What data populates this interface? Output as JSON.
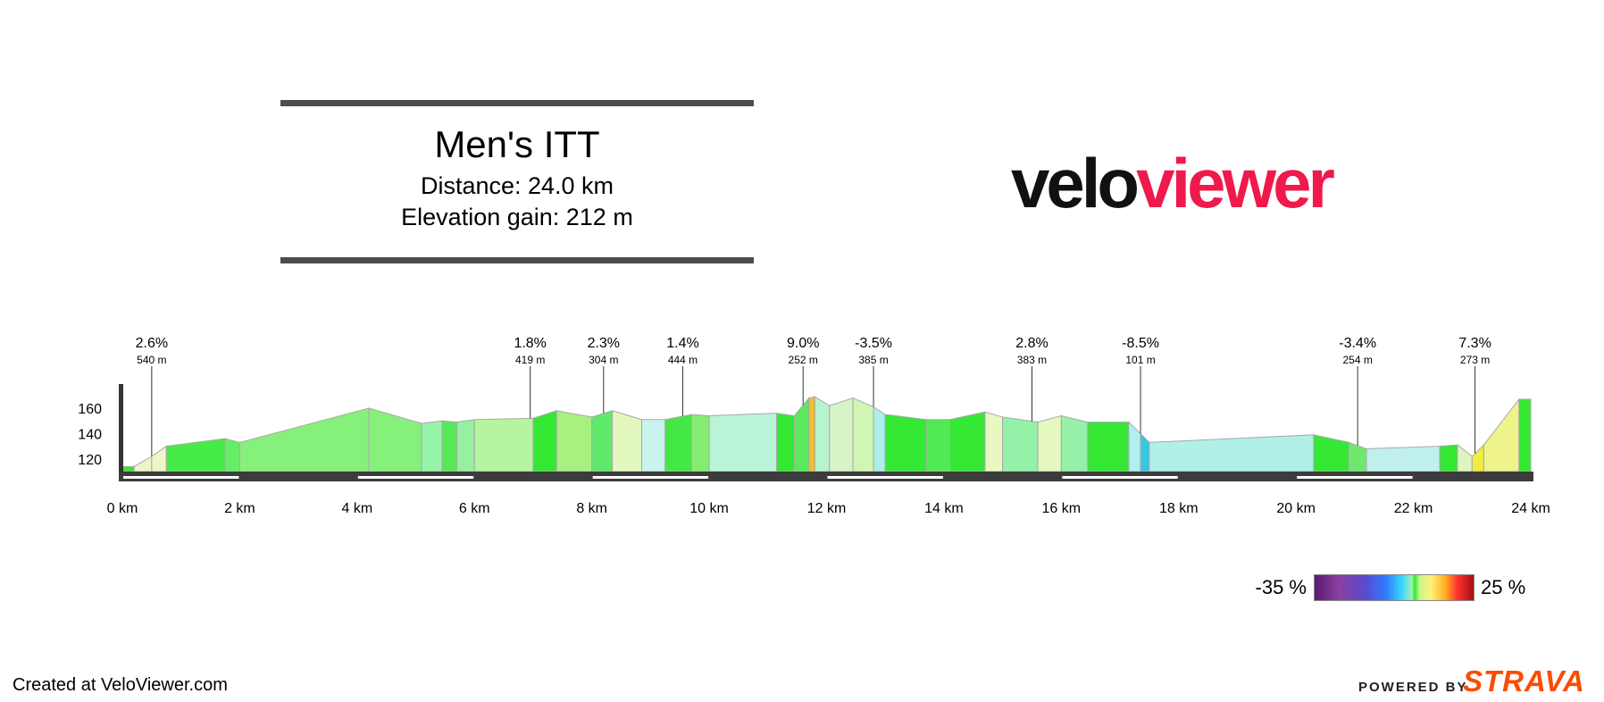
{
  "header": {
    "title": "Men's ITT",
    "distance": "Distance: 24.0 km",
    "elevation": "Elevation gain: 212 m"
  },
  "logo": {
    "part1": "velo",
    "part2": "viewer",
    "color1": "#111111",
    "color2": "#f0194b"
  },
  "legend": {
    "min": "-35 %",
    "max": "25 %"
  },
  "footer": {
    "credit": "Created at VeloViewer.com",
    "powered": "POWERED BY",
    "strava": "STRAVA"
  },
  "chart_data": {
    "type": "area",
    "xlabel": "",
    "ylabel": "",
    "xlim": [
      0,
      24
    ],
    "ylim": [
      110,
      170
    ],
    "x_ticks": [
      0,
      2,
      4,
      6,
      8,
      10,
      12,
      14,
      16,
      18,
      20,
      22,
      24
    ],
    "x_tick_labels": [
      "0 km",
      "2 km",
      "4 km",
      "6 km",
      "8 km",
      "10 km",
      "12 km",
      "14 km",
      "16 km",
      "18 km",
      "20 km",
      "22 km",
      "24 km"
    ],
    "y_ticks": [
      120,
      140,
      160
    ],
    "y_tick_labels": [
      "120",
      "140",
      "160"
    ],
    "elevation_profile": {
      "x": [
        0.0,
        0.2,
        0.5,
        0.75,
        1.75,
        2.0,
        4.2,
        5.1,
        5.45,
        5.7,
        6.0,
        7.0,
        7.4,
        8.0,
        8.35,
        8.85,
        9.25,
        9.7,
        10.0,
        11.15,
        11.45,
        11.7,
        11.8,
        12.05,
        12.45,
        12.8,
        13.0,
        13.7,
        14.1,
        14.7,
        15.0,
        15.6,
        16.0,
        16.45,
        17.15,
        17.35,
        17.5,
        20.3,
        20.9,
        21.2,
        22.45,
        22.75,
        23.0,
        23.2,
        23.8,
        24.0
      ],
      "y": [
        114,
        114,
        122,
        130,
        136,
        133,
        160,
        148,
        150,
        149,
        151,
        152,
        158,
        153,
        158,
        151,
        151,
        155,
        154,
        156,
        154,
        168,
        169,
        162,
        168,
        161,
        155,
        151,
        151,
        157,
        153,
        149,
        154,
        149,
        149,
        140,
        133,
        139,
        133,
        128,
        130,
        131,
        122,
        131,
        167,
        167
      ],
      "segment_colors": [
        "#34e834",
        "#eef5c6",
        "#eef5c6",
        "#45ec45",
        "#65ee65",
        "#85f17a",
        "#85f17a",
        "#95f4a8",
        "#56e956",
        "#95f0a0",
        "#b5f5a0",
        "#34e834",
        "#a8f080",
        "#5fe96b",
        "#e3f8c0",
        "#c9f4ec",
        "#44e844",
        "#85ec70",
        "#b8f4d8",
        "#34e834",
        "#5be85b",
        "#f0c030",
        "#b8f4d0",
        "#d8f5c8",
        "#d0f6b4",
        "#a8f0e8",
        "#34e834",
        "#52ea52",
        "#34e834",
        "#e8f8c0",
        "#95f0a8",
        "#e4f8c0",
        "#95f0a8",
        "#34e834",
        "#b0f0f0",
        "#36c8e0",
        "#b0f0e8",
        "#34e834",
        "#6ee96e",
        "#c0f0ee",
        "#34e834",
        "#e0f4c0",
        "#f0ec40",
        "#eef48a",
        "#34e834"
      ]
    },
    "annotations": [
      {
        "x": 0.5,
        "grade": "2.6%",
        "length": "540 m"
      },
      {
        "x": 6.95,
        "grade": "1.8%",
        "length": "419 m"
      },
      {
        "x": 8.2,
        "grade": "2.3%",
        "length": "304 m"
      },
      {
        "x": 9.55,
        "grade": "1.4%",
        "length": "444 m"
      },
      {
        "x": 11.6,
        "grade": "9.0%",
        "length": "252 m"
      },
      {
        "x": 12.8,
        "grade": "-3.5%",
        "length": "385 m"
      },
      {
        "x": 15.5,
        "grade": "2.8%",
        "length": "383 m"
      },
      {
        "x": 17.35,
        "grade": "-8.5%",
        "length": "101 m"
      },
      {
        "x": 21.05,
        "grade": "-3.4%",
        "length": "254 m"
      },
      {
        "x": 23.05,
        "grade": "7.3%",
        "length": "273 m"
      }
    ],
    "grade_color_scale": {
      "min": -35,
      "max": 25
    }
  }
}
